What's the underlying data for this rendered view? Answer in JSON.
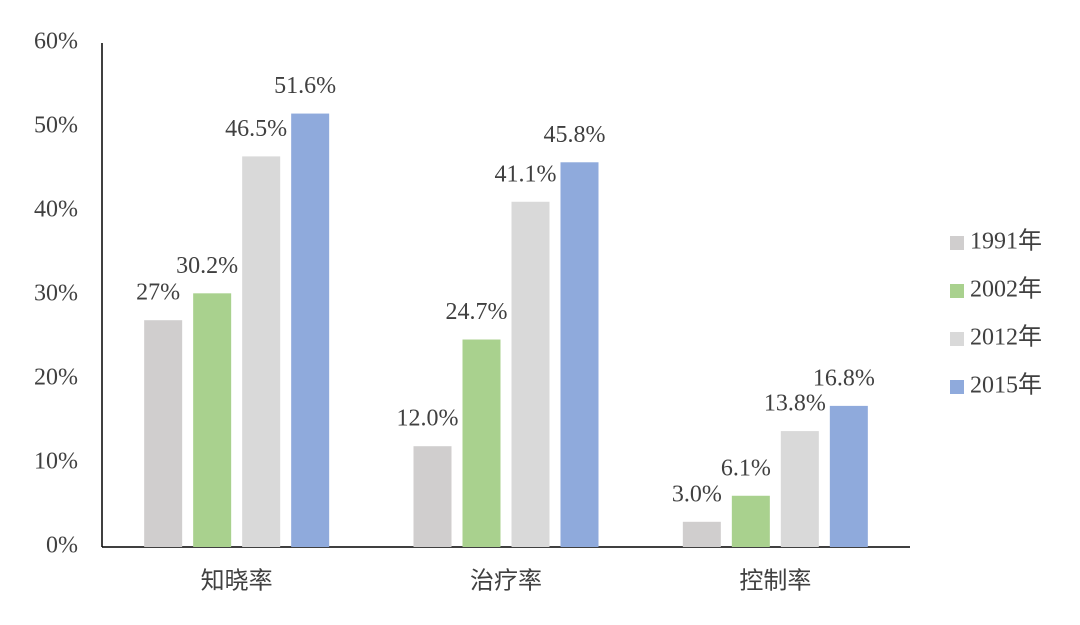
{
  "chart_data": {
    "type": "bar",
    "categories": [
      "知晓率",
      "治疗率",
      "控制率"
    ],
    "series": [
      {
        "name": "1991年",
        "color": "#d0cece",
        "values": [
          27,
          12.0,
          3.0
        ],
        "value_labels": [
          "27%",
          "12.0%",
          "3.0%"
        ]
      },
      {
        "name": "2002年",
        "color": "#a9d18e",
        "values": [
          30.2,
          24.7,
          6.1
        ],
        "value_labels": [
          "30.2%",
          "24.7%",
          "6.1%"
        ]
      },
      {
        "name": "2012年",
        "color": "#d9d9d9",
        "values": [
          46.5,
          41.1,
          13.8
        ],
        "value_labels": [
          "46.5%",
          "41.1%",
          "13.8%"
        ]
      },
      {
        "name": "2015年",
        "color": "#8faadc",
        "values": [
          51.6,
          45.8,
          16.8
        ],
        "value_labels": [
          "51.6%",
          "45.8%",
          "16.8%"
        ]
      }
    ],
    "ylim": [
      0,
      60
    ],
    "yticks": [
      {
        "value": 0,
        "label": "0%"
      },
      {
        "value": 10,
        "label": "10%"
      },
      {
        "value": 20,
        "label": "20%"
      },
      {
        "value": 30,
        "label": "30%"
      },
      {
        "value": 40,
        "label": "40%"
      },
      {
        "value": 50,
        "label": "50%"
      },
      {
        "value": 60,
        "label": "60%"
      }
    ],
    "legend": "right",
    "grid": false
  }
}
